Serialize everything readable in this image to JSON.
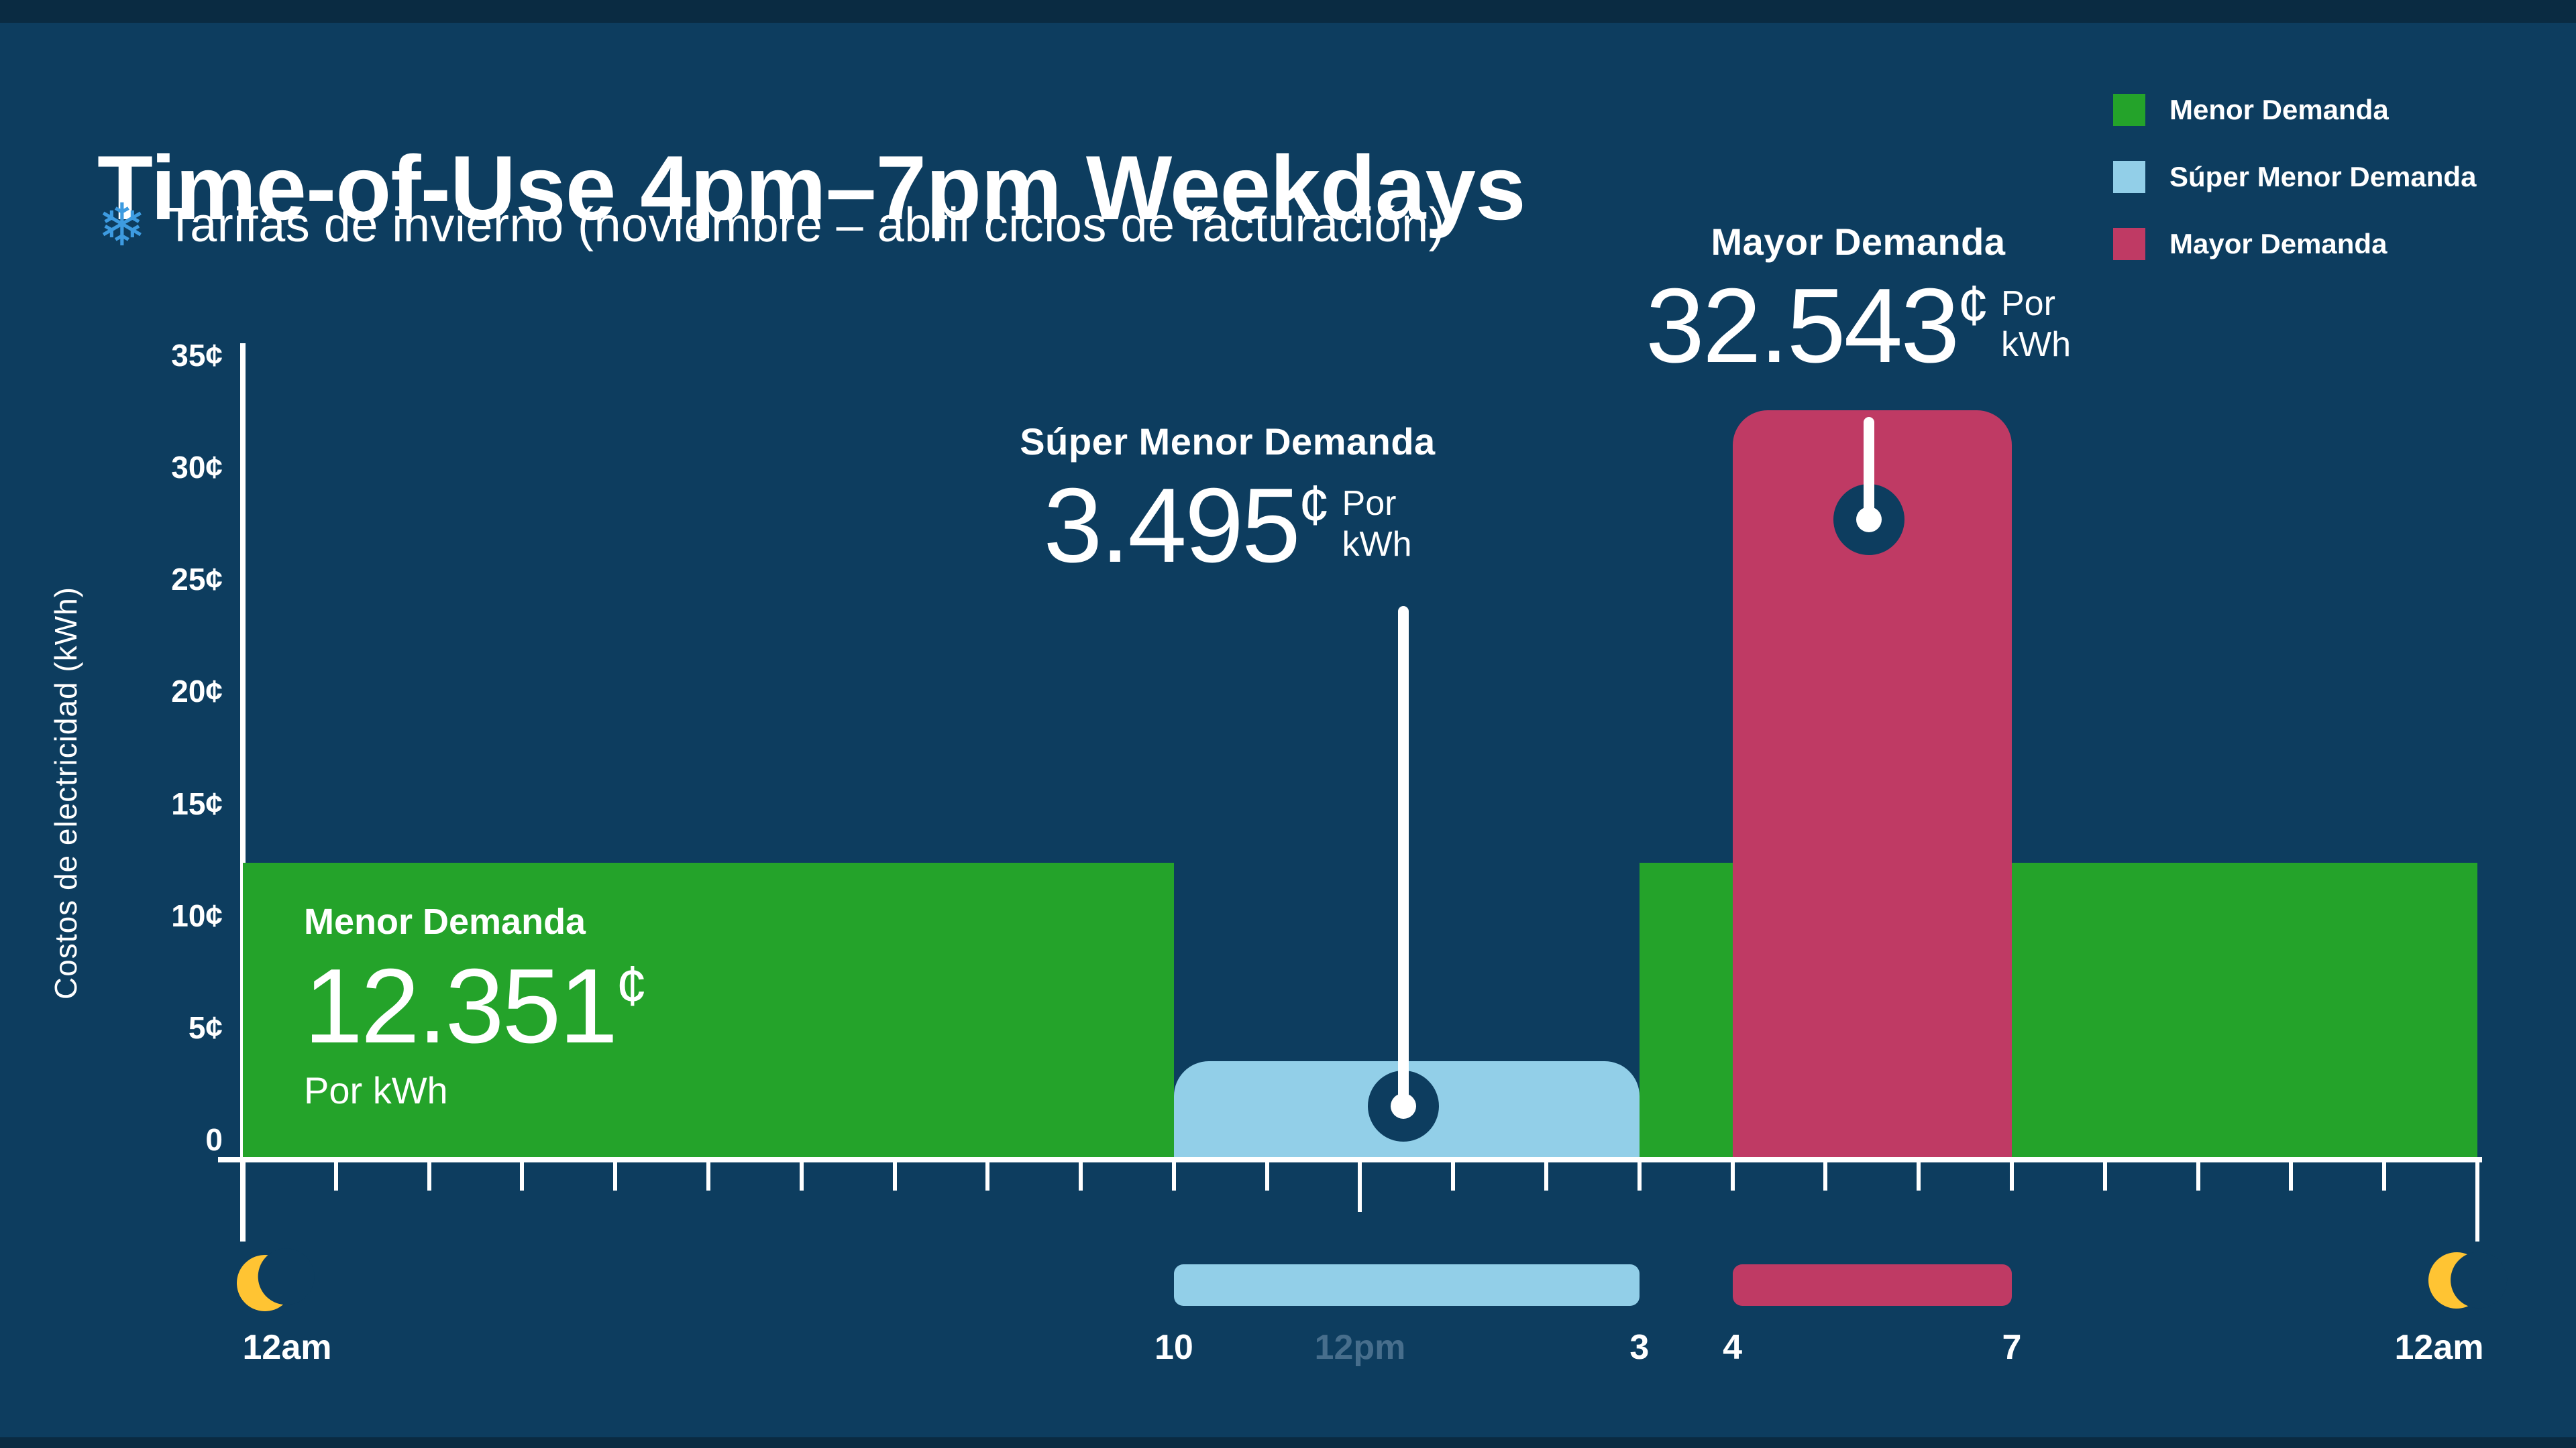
{
  "title": "Time-of-Use 4pm–7pm Weekdays",
  "subtitle": "Tarifas de invierno (noviembre – abril ciclos de facturación)",
  "legend": {
    "items": [
      {
        "label": "Menor Demanda",
        "color": "#24a32a"
      },
      {
        "label": "Súper Menor Demanda",
        "color": "#92cfe8"
      },
      {
        "label": "Mayor Demanda",
        "color": "#bf3a64"
      }
    ]
  },
  "y_axis": {
    "title": "Costos de electricidad (kWh)",
    "ticks": [
      "35¢",
      "30¢",
      "25¢",
      "20¢",
      "15¢",
      "10¢",
      "5¢",
      "0"
    ]
  },
  "x_axis": {
    "start_label": "12am",
    "end_label": "12am",
    "hour_labels": [
      {
        "text": "10",
        "hour": 10,
        "muted": false
      },
      {
        "text": "12pm",
        "hour": 12,
        "muted": true
      },
      {
        "text": "3",
        "hour": 15,
        "muted": false
      },
      {
        "text": "4",
        "hour": 16,
        "muted": false
      },
      {
        "text": "7",
        "hour": 19,
        "muted": false
      }
    ]
  },
  "callouts": {
    "menor": {
      "name": "Menor Demanda",
      "value": "12.351",
      "cent": "¢",
      "unit": "Por kWh"
    },
    "super": {
      "name": "Súper Menor Demanda",
      "value": "3.495",
      "cent": "¢",
      "unit_line1": "Por",
      "unit_line2": "kWh"
    },
    "mayor": {
      "name": "Mayor Demanda",
      "value": "32.543",
      "cent": "¢",
      "unit_line1": "Por",
      "unit_line2": "kWh"
    }
  },
  "icons": {
    "subtitle_icon": "snowflake-icon",
    "axis_end_icon": "crescent-moon-icon"
  },
  "colors": {
    "background": "#0d3d5f",
    "menor_green": "#24a32a",
    "super_blue": "#92cfe8",
    "mayor_magenta": "#bf3a64",
    "moon_yellow": "#ffc433",
    "muted_label": "#476e8c",
    "snowflake_blue": "#3d9be0",
    "axis_white": "#ffffff"
  },
  "chart_data": {
    "type": "bar",
    "title": "Time-of-Use 4pm–7pm Weekdays",
    "subtitle": "Tarifas de invierno (noviembre – abril ciclos de facturación)",
    "ylabel": "Costos de electricidad (kWh)",
    "xlabel": "",
    "ylim": [
      0,
      35
    ],
    "yticks_cents": [
      0,
      5,
      10,
      15,
      20,
      25,
      30,
      35
    ],
    "x_range_labels": [
      "12am",
      "12am"
    ],
    "x_hours": 24,
    "grid": false,
    "legend_position": "top-right",
    "segments": [
      {
        "label": "Menor Demanda",
        "start_hour": 0,
        "end_hour": 10,
        "rate_cents_per_kwh": 12.351,
        "color": "#24a32a",
        "rounded_top": false
      },
      {
        "label": "Súper Menor Demanda",
        "start_hour": 10,
        "end_hour": 15,
        "rate_cents_per_kwh": 3.495,
        "color": "#92cfe8",
        "rounded_top": true
      },
      {
        "label": "Menor Demanda",
        "start_hour": 15,
        "end_hour": 16,
        "rate_cents_per_kwh": 12.351,
        "color": "#24a32a",
        "rounded_top": false
      },
      {
        "label": "Mayor Demanda",
        "start_hour": 16,
        "end_hour": 19,
        "rate_cents_per_kwh": 32.543,
        "color": "#bf3a64",
        "rounded_top": true
      },
      {
        "label": "Menor Demanda",
        "start_hour": 19,
        "end_hour": 24,
        "rate_cents_per_kwh": 12.351,
        "color": "#24a32a",
        "rounded_top": false
      }
    ],
    "highlight_ranges": [
      {
        "start_hour": 10,
        "end_hour": 15,
        "color": "#92cfe8",
        "start_label": "10",
        "end_label": "3"
      },
      {
        "start_hour": 16,
        "end_hour": 19,
        "color": "#bf3a64",
        "start_label": "4",
        "end_label": "7"
      }
    ]
  }
}
